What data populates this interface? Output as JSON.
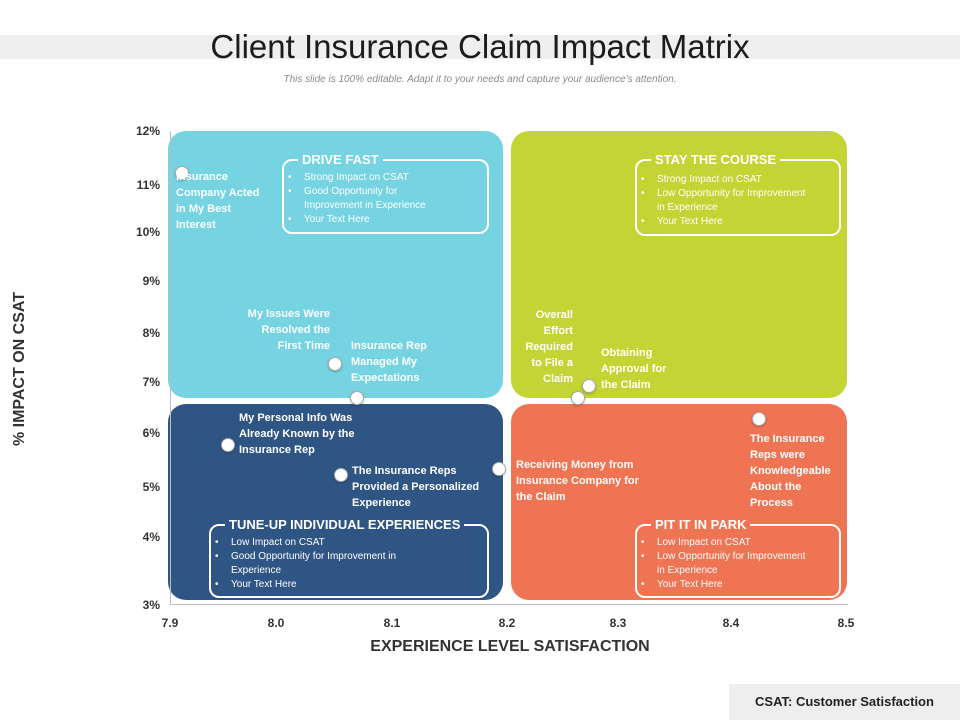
{
  "slide": {
    "title": "Client Insurance Claim Impact Matrix",
    "subtitle": "This slide is 100% editable. Adapt it to your needs and capture your audience’s attention.",
    "footer_note": "CSAT: Customer Satisfaction"
  },
  "colors": {
    "top_left": "#76d3e2",
    "top_right": "#c3d534",
    "bottom_left": "#2f5585",
    "bottom_right": "#ef7454"
  },
  "quadrants": {
    "top_left": {
      "heading": "DRIVE FAST",
      "items": [
        "Strong Impact on CSAT",
        "Good Opportunity for Improvement in Experience",
        "Your Text Here"
      ]
    },
    "top_right": {
      "heading": "STAY THE COURSE",
      "items": [
        "Strong Impact on CSAT",
        "Low Opportunity for Improvement in Experience",
        "Your Text Here"
      ]
    },
    "bottom_left": {
      "heading": "TUNE-UP INDIVIDUAL EXPERIENCES",
      "items": [
        "Low Impact on CSAT",
        "Good Opportunity for Improvement in Experience",
        "Your Text Here"
      ]
    },
    "bottom_right": {
      "heading": "PIT IT IN PARK",
      "items": [
        "Low Impact on CSAT",
        "Low Opportunity for Improvement in Experience",
        "Your Text Here"
      ]
    }
  },
  "chart_data": {
    "type": "scatter",
    "xlabel": "EXPERIENCE LEVEL SATISFACTION",
    "ylabel": "% IMPACT ON CSAT",
    "x_ticks": [
      "7.9",
      "8.0",
      "8.1",
      "8.2",
      "8.3",
      "8.4",
      "8.5"
    ],
    "y_ticks": [
      "3%",
      "4%",
      "5%",
      "6%",
      "7%",
      "8%",
      "9%",
      "10%",
      "11%",
      "12%"
    ],
    "xlim": [
      7.9,
      8.5
    ],
    "ylim": [
      3,
      12
    ],
    "grid": false,
    "points": [
      {
        "label": "Insurance Company Acted in My Best Interest",
        "x": 7.91,
        "y": 11.25
      },
      {
        "label": "My Issues Were Resolved the First Time",
        "x": 8.045,
        "y": 7.38
      },
      {
        "label": "Insurance Rep Managed My Expectations",
        "x": 8.065,
        "y": 6.7
      },
      {
        "label": "My Personal Info Was Already Known by the Insurance Rep",
        "x": 7.95,
        "y": 5.8
      },
      {
        "label": "The Insurance Reps Provided a Personalized Experience",
        "x": 8.05,
        "y": 5.25
      },
      {
        "label": "Receiving Money from Insurance Company for the Claim",
        "x": 8.19,
        "y": 5.35
      },
      {
        "label": "Overall Effort Required to File a Claim",
        "x": 8.26,
        "y": 6.7
      },
      {
        "label": "Obtaining Approval for the Claim",
        "x": 8.27,
        "y": 6.95
      },
      {
        "label": "The Insurance Reps were Knowledgeable About the Process",
        "x": 8.42,
        "y": 6.3
      }
    ]
  }
}
